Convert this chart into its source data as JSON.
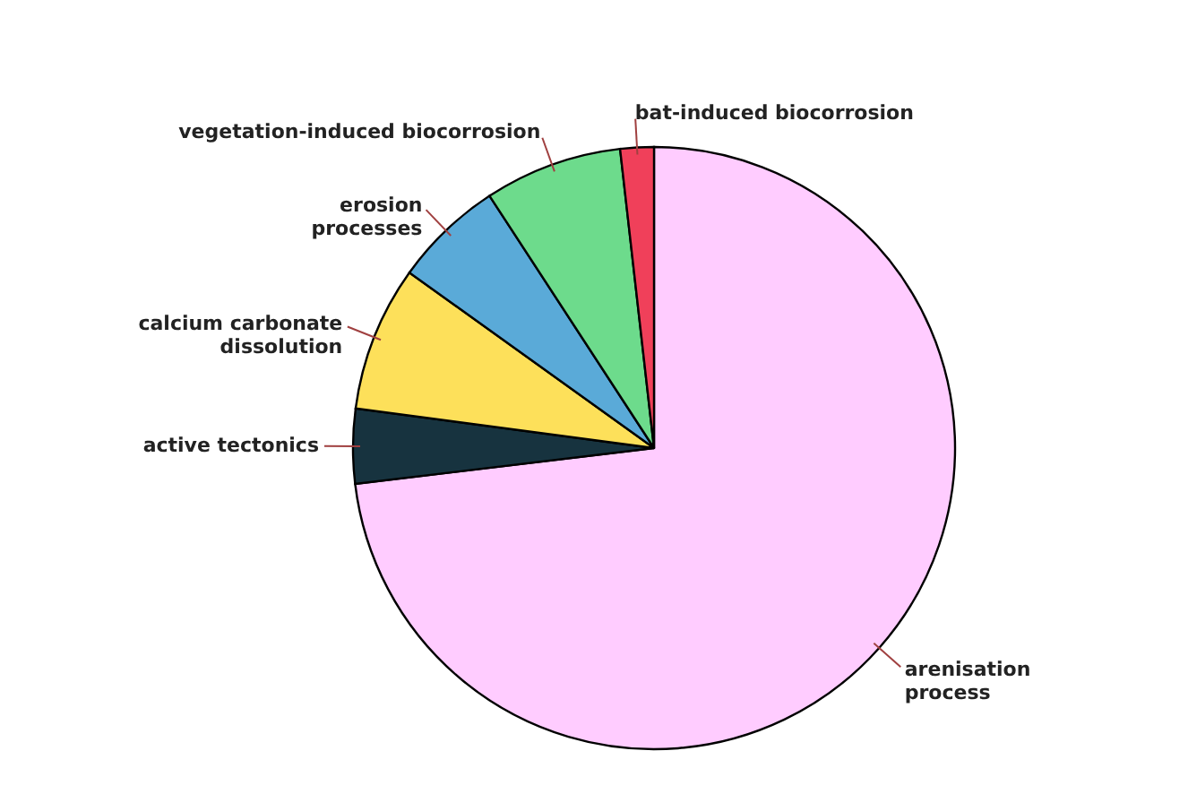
{
  "chart_data": {
    "type": "pie",
    "categories": [
      "arenisation process",
      "active tectonics",
      "calcium carbonate dissolution",
      "erosion processes",
      "vegetation-induced biocorrosion",
      "bat-induced biocorrosion"
    ],
    "values": [
      73.1,
      4,
      7.8,
      5.9,
      7.4,
      1.8
    ],
    "colors": [
      "#ffccff",
      "#17333f",
      "#fde05a",
      "#5aaad8",
      "#6ddb8c",
      "#f0405a"
    ]
  }
}
